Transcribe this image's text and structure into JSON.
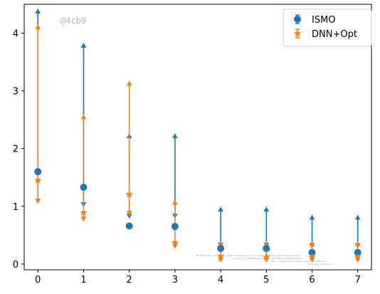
{
  "chart_data": {
    "type": "scatter",
    "subtype": "asymmetric-error-bars",
    "x": [
      0,
      1,
      2,
      3,
      4,
      5,
      6,
      7
    ],
    "xlim": [
      -0.3,
      7.3
    ],
    "ylim": [
      -0.1,
      4.5
    ],
    "xticks": [
      0,
      1,
      2,
      3,
      4,
      5,
      6,
      7
    ],
    "yticks": [
      0,
      1,
      2,
      3,
      4
    ],
    "grid": false,
    "legend_position": "top-right",
    "series": [
      {
        "name": "ISMO",
        "color": "#1f77b4",
        "marker": "circle",
        "y": [
          1.6,
          1.33,
          0.66,
          0.65,
          0.27,
          0.27,
          0.2,
          0.2
        ],
        "y_low": [
          1.1,
          1.04,
          0.84,
          0.84,
          0.34,
          0.34,
          0.33,
          0.33
        ],
        "y_high": [
          4.37,
          3.78,
          2.21,
          2.21,
          0.94,
          0.94,
          0.8,
          0.8
        ],
        "x_offset": 0
      },
      {
        "name": "DNN+Opt",
        "color": "#ff7f0e",
        "marker": "star",
        "y": [
          1.45,
          0.89,
          1.21,
          0.37,
          0.13,
          0.12,
          0.12,
          0.12
        ],
        "y_low": [
          1.1,
          0.79,
          0.89,
          0.32,
          0.08,
          0.08,
          0.08,
          0.08
        ],
        "y_high": [
          4.1,
          2.54,
          3.12,
          1.06,
          0.34,
          0.34,
          0.34,
          0.34
        ],
        "x_offset": 0
      }
    ],
    "watermark": "@4cb9",
    "footnote": [
      "By Kjetil Olsen Lye © 2022 <kjetil.o.lye@gmail.com> and Dany Sengupta, idsnp.org@kjetl.olsen",
      "Commit: 4cb9fa0f0b0e0a77f8e0ba02b7f05b0d5cfe4ab9efc9b17",
      "Repo: git@github.com:kjetil-lye/ismo_validation.git",
      "Hostname: ss-login-29"
    ]
  }
}
